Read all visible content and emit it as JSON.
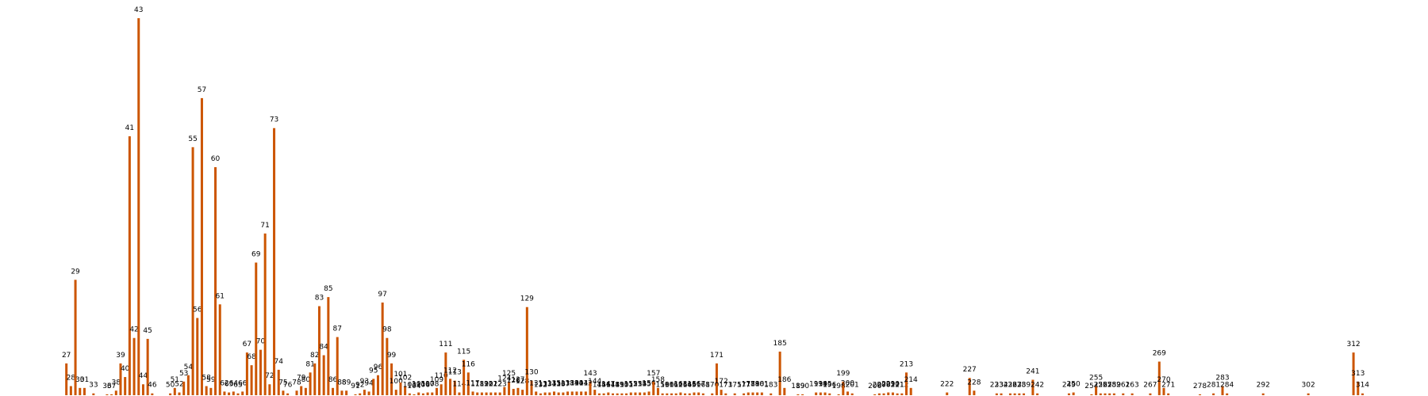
{
  "chart_data": {
    "type": "bar",
    "color": "#cc5500",
    "xlim": [
      12.3,
      328.5
    ],
    "ylim": [
      0,
      435
    ],
    "x": [
      27,
      28,
      29,
      30,
      31,
      33,
      36,
      37,
      38,
      39,
      40,
      41,
      42,
      43,
      44,
      45,
      46,
      50,
      51,
      52,
      53,
      54,
      55,
      56,
      57,
      58,
      59,
      60,
      61,
      62,
      63,
      64,
      65,
      66,
      67,
      68,
      69,
      70,
      71,
      72,
      73,
      74,
      75,
      76,
      78,
      79,
      80,
      81,
      82,
      83,
      84,
      85,
      86,
      87,
      88,
      89,
      91,
      92,
      93,
      94,
      95,
      96,
      97,
      98,
      99,
      100,
      101,
      102,
      103,
      104,
      105,
      106,
      107,
      108,
      109,
      110,
      111,
      112,
      113,
      114,
      115,
      116,
      117,
      118,
      119,
      120,
      121,
      122,
      123,
      124,
      125,
      126,
      127,
      128,
      129,
      130,
      131,
      132,
      133,
      134,
      135,
      136,
      137,
      138,
      139,
      140,
      141,
      142,
      143,
      144,
      145,
      146,
      147,
      148,
      149,
      150,
      151,
      152,
      153,
      154,
      155,
      156,
      157,
      158,
      159,
      160,
      161,
      162,
      163,
      164,
      165,
      166,
      167,
      168,
      170,
      171,
      172,
      173,
      175,
      177,
      178,
      179,
      180,
      181,
      183,
      185,
      186,
      189,
      190,
      193,
      194,
      195,
      196,
      198,
      199,
      200,
      201,
      206,
      207,
      208,
      209,
      210,
      211,
      212,
      213,
      214,
      222,
      227,
      228,
      233,
      234,
      236,
      237,
      238,
      239,
      241,
      242,
      249,
      250,
      254,
      255,
      256,
      257,
      258,
      259,
      261,
      263,
      267,
      269,
      270,
      271,
      278,
      281,
      283,
      284,
      292,
      302,
      312,
      313,
      314
    ],
    "values": [
      35,
      10,
      127,
      8,
      8,
      2,
      1,
      1,
      5,
      35,
      20,
      285,
      63,
      415,
      12,
      62,
      2,
      2,
      8,
      3,
      15,
      22,
      273,
      85,
      327,
      10,
      8,
      251,
      100,
      4,
      3,
      4,
      2,
      4,
      47,
      33,
      146,
      50,
      178,
      12,
      294,
      28,
      5,
      2,
      5,
      10,
      8,
      25,
      35,
      98,
      44,
      108,
      8,
      64,
      5,
      5,
      1,
      2,
      6,
      4,
      18,
      22,
      102,
      63,
      35,
      6,
      14,
      10,
      2,
      1,
      3,
      2,
      3,
      3,
      8,
      12,
      47,
      18,
      16,
      3,
      39,
      25,
      4,
      3,
      3,
      3,
      3,
      3,
      3,
      9,
      15,
      7,
      8,
      6,
      97,
      16,
      4,
      2,
      3,
      3,
      4,
      3,
      3,
      4,
      4,
      4,
      4,
      4,
      15,
      6,
      2,
      2,
      3,
      2,
      2,
      2,
      2,
      3,
      3,
      3,
      3,
      4,
      15,
      8,
      2,
      2,
      2,
      2,
      3,
      2,
      2,
      3,
      3,
      2,
      2,
      35,
      6,
      2,
      2,
      2,
      3,
      3,
      3,
      3,
      2,
      48,
      8,
      1,
      1,
      3,
      3,
      3,
      2,
      1,
      15,
      4,
      2,
      1,
      2,
      2,
      3,
      3,
      2,
      2,
      25,
      8,
      3,
      19,
      5,
      2,
      2,
      2,
      2,
      2,
      2,
      17,
      2,
      2,
      3,
      1,
      10,
      2,
      2,
      2,
      2,
      2,
      2,
      2,
      37,
      8,
      2,
      1,
      2,
      10,
      2,
      2,
      2,
      47,
      15,
      2
    ]
  }
}
